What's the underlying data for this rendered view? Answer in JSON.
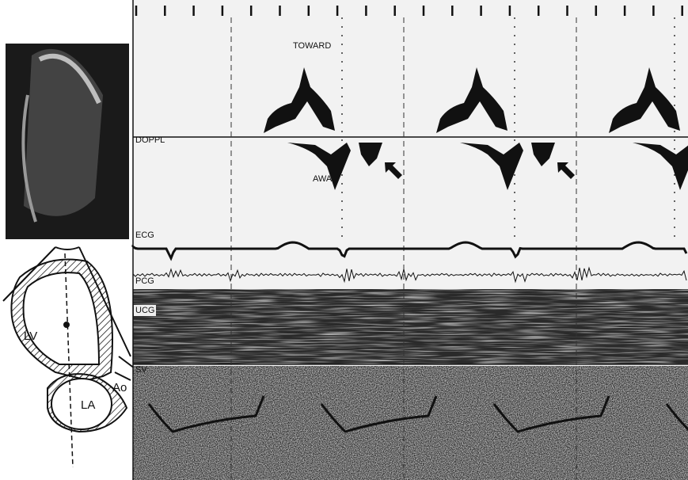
{
  "panel": {
    "toward": "TOWARD",
    "away": "AWAY",
    "doppl": "DOPPL",
    "ecg": "ECG",
    "pcg": "PCG",
    "ucg": "UCG",
    "sv": "SV"
  },
  "diagram": {
    "lv": "LV",
    "la": "LA",
    "ao": "Ao"
  }
}
